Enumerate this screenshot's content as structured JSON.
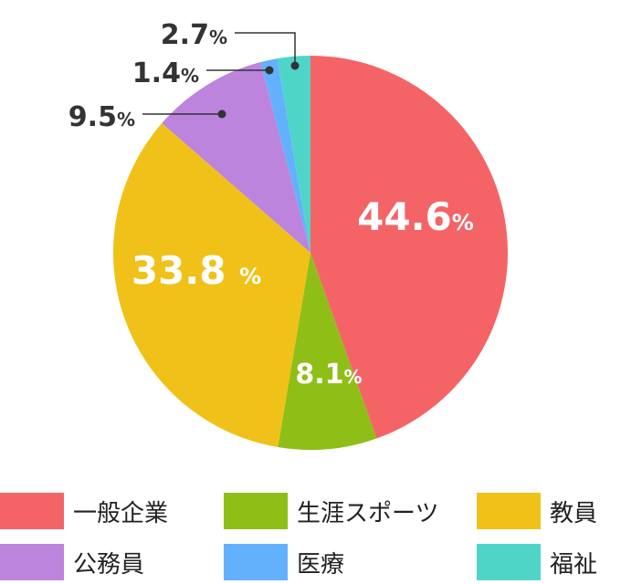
{
  "chart_data": {
    "type": "pie",
    "title": "",
    "slices": [
      {
        "name": "一般企業",
        "value": 44.6,
        "label": "44.6",
        "color": "#f46467"
      },
      {
        "name": "生涯スポーツ",
        "value": 8.1,
        "label": "8.1",
        "color": "#8fbf17"
      },
      {
        "name": "教員",
        "value": 33.8,
        "label": "33.8 ",
        "color": "#f0c219"
      },
      {
        "name": "公務員",
        "value": 9.5,
        "label": "9.5",
        "color": "#bd84de"
      },
      {
        "name": "医療",
        "value": 1.4,
        "label": "1.4",
        "color": "#63b1fc"
      },
      {
        "name": "福祉",
        "value": 2.7,
        "label": "2.7",
        "color": "#4fd5c8"
      }
    ],
    "percent_sign": "%",
    "start_angle_deg": 0,
    "direction": "clockwise",
    "legend_position": "bottom"
  },
  "legend": {
    "items": [
      {
        "label": "一般企業",
        "color": "#f46467"
      },
      {
        "label": "生涯スポーツ",
        "color": "#8fbf17"
      },
      {
        "label": "教員",
        "color": "#f0c219"
      },
      {
        "label": "公務員",
        "color": "#bd84de"
      },
      {
        "label": "医療",
        "color": "#63b1fc"
      },
      {
        "label": "福祉",
        "color": "#4fd5c8"
      }
    ]
  }
}
